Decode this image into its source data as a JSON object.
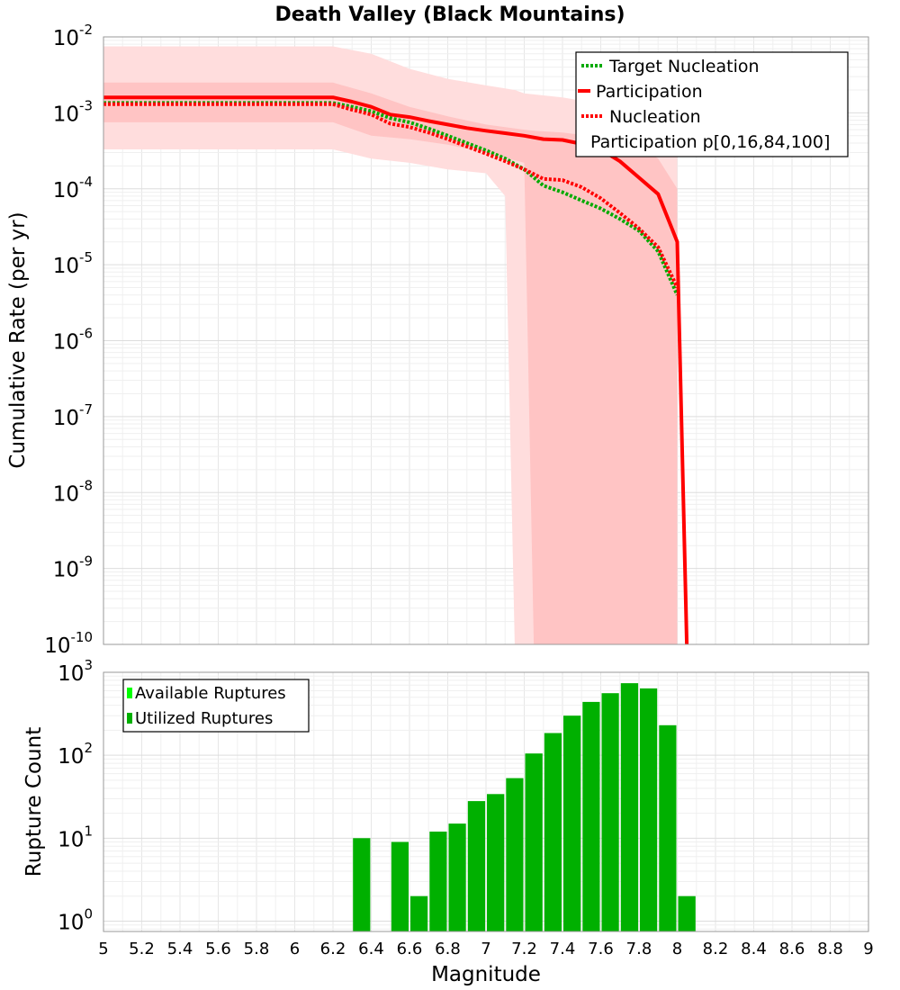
{
  "chart_data": [
    {
      "type": "line",
      "title": "Death Valley (Black Mountains)",
      "xlabel": "",
      "ylabel": "Cumulative Rate (per yr)",
      "xlim": [
        5,
        9
      ],
      "ylim": [
        1e-10,
        0.01
      ],
      "yscale": "log",
      "grid": true,
      "legend_position": "top-right",
      "y_tick_exponents": [
        "-2",
        "-3",
        "-4",
        "-5",
        "-6",
        "-7",
        "-8",
        "-9",
        "-10"
      ],
      "y_tick_base": "10",
      "series": [
        {
          "name": "Target Nucleation",
          "style": "dotted",
          "color": "#00aa00",
          "x": [
            5.0,
            6.2,
            6.3,
            6.4,
            6.5,
            6.6,
            6.7,
            6.8,
            6.9,
            7.0,
            7.1,
            7.2,
            7.3,
            7.4,
            7.5,
            7.6,
            7.7,
            7.8,
            7.9,
            8.0
          ],
          "y": [
            0.00135,
            0.00135,
            0.0012,
            0.00105,
            0.00085,
            0.00075,
            0.00062,
            0.0005,
            0.0004,
            0.00032,
            0.00025,
            0.00018,
            0.00011,
            9e-05,
            7e-05,
            5.5e-05,
            4e-05,
            2.8e-05,
            1.5e-05,
            4e-06
          ]
        },
        {
          "name": "Participation",
          "style": "solid",
          "color": "#ff0000",
          "x": [
            5.0,
            6.2,
            6.3,
            6.4,
            6.5,
            6.6,
            6.7,
            6.8,
            6.9,
            7.0,
            7.1,
            7.2,
            7.3,
            7.4,
            7.5,
            7.6,
            7.7,
            7.8,
            7.9,
            8.0,
            8.05
          ],
          "y": [
            0.0016,
            0.0016,
            0.0014,
            0.0012,
            0.00095,
            0.00088,
            0.00078,
            0.0007,
            0.00063,
            0.00058,
            0.00054,
            0.0005,
            0.00045,
            0.00044,
            0.00039,
            0.00033,
            0.00023,
            0.00014,
            8.5e-05,
            2e-05,
            1e-10
          ]
        },
        {
          "name": "Nucleation",
          "style": "dotted",
          "color": "#ff0000",
          "x": [
            5.0,
            6.2,
            6.3,
            6.4,
            6.5,
            6.6,
            6.7,
            6.8,
            6.9,
            7.0,
            7.1,
            7.2,
            7.3,
            7.4,
            7.5,
            7.6,
            7.7,
            7.8,
            7.9,
            8.0
          ],
          "y": [
            0.0013,
            0.0013,
            0.0011,
            0.00095,
            0.00072,
            0.00065,
            0.00055,
            0.00045,
            0.00036,
            0.00029,
            0.00023,
            0.00018,
            0.000135,
            0.00013,
            0.000105,
            7.5e-05,
            4.8e-05,
            3e-05,
            1.7e-05,
            5e-06
          ]
        }
      ],
      "bands": [
        {
          "name": "Participation p[0,16,84,100]",
          "kind": "outer (p0–p100)",
          "color": "#ffdddd",
          "x": [
            5.0,
            6.2,
            6.4,
            6.6,
            6.8,
            7.0,
            7.1,
            7.15,
            7.2,
            7.4,
            7.6,
            7.8,
            7.9,
            8.0
          ],
          "upper": [
            0.0075,
            0.0075,
            0.006,
            0.0038,
            0.0028,
            0.0023,
            0.0021,
            0.002,
            0.0018,
            0.0016,
            0.0013,
            0.0009,
            0.0006,
            0.00035
          ],
          "lower": [
            0.00033,
            0.00033,
            0.00025,
            0.00022,
            0.00018,
            0.00016,
            8e-05,
            1e-10,
            1e-10,
            1e-10,
            1e-10,
            1e-10,
            1e-10,
            1e-10
          ]
        },
        {
          "name": "Participation p[0,16,84,100]",
          "kind": "inner (p16–p84)",
          "color": "#ffc4c4",
          "x": [
            5.0,
            6.2,
            6.4,
            6.6,
            6.8,
            7.0,
            7.2,
            7.25,
            7.4,
            7.6,
            7.8,
            7.9,
            8.0
          ],
          "upper": [
            0.0025,
            0.0025,
            0.0018,
            0.0012,
            0.0009,
            0.0007,
            0.0006,
            0.00058,
            0.00055,
            0.00048,
            0.00038,
            0.00025,
            0.0001
          ],
          "lower": [
            0.00075,
            0.00075,
            0.0005,
            0.00045,
            0.00038,
            0.0003,
            0.00022,
            1e-10,
            1e-10,
            1e-10,
            1e-10,
            1e-10,
            1e-10
          ]
        }
      ]
    },
    {
      "type": "bar",
      "title": "",
      "xlabel": "Magnitude",
      "ylabel": "Rupture Count",
      "xlim": [
        5,
        9
      ],
      "ylim": [
        0.75,
        1000
      ],
      "yscale": "log",
      "grid": true,
      "legend_position": "top-left",
      "y_tick_exponents": [
        "3",
        "2",
        "1",
        "0"
      ],
      "y_tick_base": "10",
      "x_ticks": [
        "5",
        "5.2",
        "5.4",
        "5.6",
        "5.8",
        "6",
        "6.2",
        "6.4",
        "6.6",
        "6.8",
        "7",
        "7.2",
        "7.4",
        "7.6",
        "7.8",
        "8",
        "8.2",
        "8.4",
        "8.6",
        "8.8",
        "9"
      ],
      "series": [
        {
          "name": "Available Ruptures",
          "color": "#00ff00",
          "x": [],
          "values": []
        },
        {
          "name": "Utilized Ruptures",
          "color": "#00b000",
          "x": [
            6.35,
            6.55,
            6.65,
            6.75,
            6.85,
            6.95,
            7.05,
            7.15,
            7.25,
            7.35,
            7.45,
            7.55,
            7.65,
            7.75,
            7.85,
            7.95,
            8.05
          ],
          "values": [
            10,
            9,
            2,
            12,
            15,
            28,
            34,
            53,
            105,
            185,
            300,
            440,
            560,
            740,
            640,
            230,
            2
          ]
        }
      ]
    }
  ]
}
